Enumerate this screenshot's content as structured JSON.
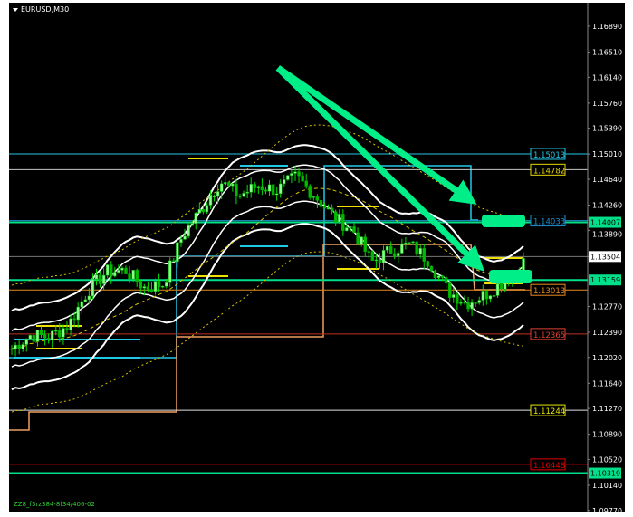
{
  "header": {
    "title": "EURUSD,M30",
    "collapse_icon": "triangle-down-icon"
  },
  "footer": {
    "indicator_label": "ZZ8_f3rz384-8f34/406-02"
  },
  "colors": {
    "background": "#000000",
    "bull": "#00ff00",
    "bear": "#00aa00",
    "band": "#ffffff",
    "ma": "#d4c200",
    "arrow": "#00ee88"
  },
  "chart_data": {
    "type": "candlestick",
    "title": "EURUSD,M30",
    "ylim": [
      1.0977,
      1.1705
    ],
    "y_ticks": [
      "1.16890",
      "1.16510",
      "1.16140",
      "1.15760",
      "1.15390",
      "1.15010",
      "1.14640",
      "1.14260",
      "1.13890",
      "1.13504",
      "1.12770",
      "1.12390",
      "1.12020",
      "1.11640",
      "1.11270",
      "1.10890",
      "1.10520",
      "1.10140",
      "1.09770"
    ],
    "approx_close_path": [
      1.1215,
      1.1235,
      1.1232,
      1.125,
      1.13,
      1.1328,
      1.133,
      1.1305,
      1.131,
      1.1381,
      1.142,
      1.1461,
      1.144,
      1.1455,
      1.1448,
      1.1468,
      1.144,
      1.1408,
      1.139,
      1.1342,
      1.136,
      1.1368,
      1.1345,
      1.13,
      1.1282,
      1.1295,
      1.1315,
      1.1342
    ],
    "levels": [
      {
        "label": "1.15013",
        "price": 1.15013,
        "color": "#22c8e8"
      },
      {
        "label": "1.14782",
        "price": 1.14782,
        "color": "#e8d800",
        "line": "#c8c8c8"
      },
      {
        "label": "1.14033",
        "price": 1.14033,
        "color": "#1e8fd0"
      },
      {
        "label": "1.13013",
        "price": 1.13013,
        "color": "#e88a20"
      },
      {
        "label": "1.12365",
        "price": 1.12365,
        "color": "#e04030"
      },
      {
        "label": "1.11244",
        "price": 1.11244,
        "color": "#e8e800",
        "line": "#e0e0e0"
      },
      {
        "label": "1.10448",
        "price": 1.10448,
        "color": "#e00000"
      }
    ],
    "axis_markers": [
      {
        "label": "1.14007",
        "price": 1.14007,
        "bg": "#00e08a",
        "fg": "#000"
      },
      {
        "label": "1.13504",
        "price": 1.13504,
        "bg": "#ffffff",
        "fg": "#000"
      },
      {
        "label": "1.13159",
        "price": 1.13159,
        "bg": "#00e08a",
        "fg": "#000"
      },
      {
        "label": "1.10319",
        "price": 1.10319,
        "bg": "#00e08a",
        "fg": "#000"
      }
    ]
  }
}
